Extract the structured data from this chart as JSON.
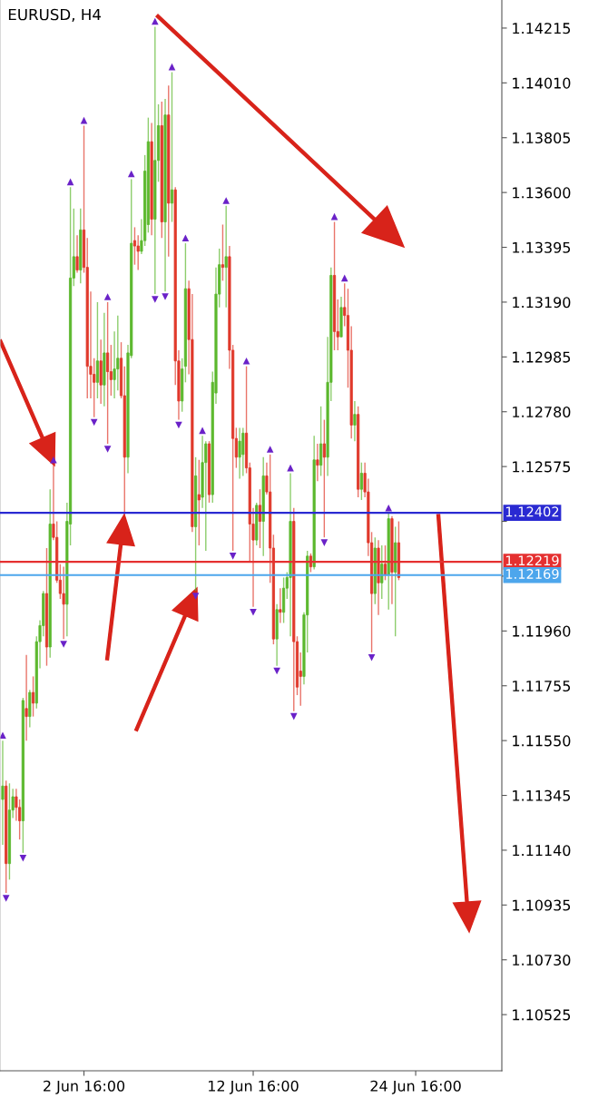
{
  "chart_data": {
    "type": "candlestick",
    "title": "EURUSD, H4",
    "categories": [
      null,
      null,
      null,
      null,
      null,
      null,
      null,
      null,
      null,
      null,
      null,
      null,
      null,
      null,
      null,
      null,
      null,
      null,
      null,
      null,
      null,
      null,
      null,
      null,
      "2 Jun 16:00",
      null,
      null,
      null,
      null,
      null,
      null,
      null,
      null,
      null,
      null,
      null,
      null,
      null,
      null,
      null,
      null,
      null,
      null,
      null,
      null,
      null,
      null,
      null,
      null,
      null,
      null,
      null,
      null,
      null,
      null,
      null,
      null,
      null,
      null,
      null,
      null,
      null,
      null,
      null,
      null,
      null,
      null,
      null,
      null,
      null,
      null,
      null,
      null,
      null,
      "12 Jun 16:00",
      null,
      null,
      null,
      null,
      null,
      null,
      null,
      null,
      null,
      null,
      null,
      null,
      null,
      null,
      null,
      null,
      null,
      null,
      null,
      null,
      null,
      null,
      null,
      null,
      null,
      null,
      null,
      null,
      null,
      null,
      null,
      null,
      null,
      null,
      null,
      null,
      null,
      null,
      null,
      null,
      null,
      null,
      null,
      null,
      null,
      null,
      null,
      "24 Jun 16:00",
      null,
      null,
      null,
      null,
      null,
      null,
      null,
      null,
      null,
      null,
      null,
      null,
      null,
      null,
      null,
      null,
      null,
      null,
      null,
      null,
      null,
      null,
      null,
      null,
      null
    ],
    "colors": [
      "#5cb82e",
      "#e0392b",
      "#5cb82e",
      "#5cb82e",
      "#e0392b",
      "#e0392b",
      "#5cb82e",
      "#e0392b",
      "#5cb82e",
      "#e0392b",
      "#5cb82e",
      "#5cb82e",
      "#5cb82e",
      "#e0392b",
      "#5cb82e",
      "#e0392b",
      "#e0392b",
      "#e0392b",
      "#e0392b",
      "#5cb82e",
      "#5cb82e",
      "#5cb82e",
      "#e0392b",
      "#5cb82e",
      "#e0392b",
      "#e0392b",
      "#e0392b",
      "#e0392b",
      "#5cb82e",
      "#e0392b",
      "#5cb82e",
      "#e0392b",
      "#e0392b",
      "#5cb82e",
      "#5cb82e",
      "#e0392b",
      "#e0392b",
      "#5cb82e",
      "#5cb82e",
      "#e0392b",
      "#e0392b",
      "#5cb82e",
      "#5cb82e",
      "#5cb82e",
      "#e0392b",
      "#5cb82e",
      "#5cb82e",
      "#e0392b",
      "#5cb82e",
      "#e0392b",
      "#5cb82e",
      "#e0392b",
      "#e0392b",
      "#5cb82e",
      "#5cb82e",
      "#e0392b",
      "#e0392b",
      "#5cb82e",
      "#e0392b",
      "#5cb82e",
      "#5cb82e",
      "#e0392b",
      "#5cb82e",
      "#5cb82e",
      "#5cb82e",
      "#e0392b",
      "#5cb82e",
      "#e0392b",
      "#e0392b",
      "#e0392b",
      "#5cb82e",
      "#5cb82e",
      "#e0392b",
      "#e0392b",
      "#e0392b",
      "#5cb82e",
      "#e0392b",
      "#5cb82e",
      "#e0392b",
      "#e0392b",
      "#e0392b",
      "#5cb82e",
      "#e0392b",
      "#5cb82e",
      "#5cb82e",
      "#5cb82e",
      "#e0392b",
      "#e0392b",
      "#e0392b",
      "#5cb82e",
      "#5cb82e",
      "#e0392b",
      "#5cb82e",
      "#e0392b",
      "#5cb82e",
      "#e0392b",
      "#5cb82e",
      "#5cb82e",
      "#e0392b",
      "#e0392b",
      "#5cb82e",
      "#e0392b",
      "#e0392b",
      "#e0392b",
      "#5cb82e",
      "#e0392b",
      "#5cb82e",
      "#e0392b",
      "#e0392b",
      "#e0392b",
      "#5cb82e",
      "#e0392b",
      "#5cb82e",
      "#e0392b",
      "#5cb82e",
      "#e0392b",
      "#5cb82e",
      "#e0392b",
      null,
      null,
      null,
      null,
      null,
      null,
      null,
      null,
      null,
      null,
      null,
      null,
      null,
      null,
      null,
      null,
      null,
      null,
      null,
      null,
      null,
      null,
      null,
      null,
      null,
      null,
      null,
      null,
      null,
      null
    ],
    "ohlc": [
      [
        1.1133,
        1.1155,
        1.1116,
        1.1138
      ],
      [
        1.1138,
        1.114,
        1.1098,
        1.1109
      ],
      [
        1.1109,
        1.1139,
        1.1103,
        1.1129
      ],
      [
        1.1129,
        1.1137,
        1.1126,
        1.1134
      ],
      [
        1.1134,
        1.1137,
        1.1125,
        1.113
      ],
      [
        1.113,
        1.1133,
        1.1118,
        1.1125
      ],
      [
        1.1125,
        1.1171,
        1.1113,
        1.117
      ],
      [
        1.1167,
        1.1187,
        1.1155,
        1.1164
      ],
      [
        1.1164,
        1.1174,
        1.116,
        1.1173
      ],
      [
        1.1173,
        1.1179,
        1.1164,
        1.1169
      ],
      [
        1.1169,
        1.1194,
        1.1167,
        1.1192
      ],
      [
        1.1192,
        1.12,
        1.1182,
        1.1198
      ],
      [
        1.1198,
        1.1211,
        1.1194,
        1.121
      ],
      [
        1.121,
        1.1227,
        1.1183,
        1.119
      ],
      [
        1.119,
        1.1249,
        1.1186,
        1.1236
      ],
      [
        1.1236,
        1.1258,
        1.123,
        1.1231
      ],
      [
        1.1231,
        1.1237,
        1.1214,
        1.1215
      ],
      [
        1.1215,
        1.1221,
        1.1208,
        1.121
      ],
      [
        1.121,
        1.122,
        1.1193,
        1.1206
      ],
      [
        1.1206,
        1.1244,
        1.1194,
        1.1237
      ],
      [
        1.1236,
        1.1362,
        1.1228,
        1.1328
      ],
      [
        1.1328,
        1.1354,
        1.1325,
        1.1336
      ],
      [
        1.1336,
        1.1344,
        1.133,
        1.1331
      ],
      [
        1.1331,
        1.1354,
        1.1326,
        1.1346
      ],
      [
        1.1346,
        1.1385,
        1.133,
        1.1332
      ],
      [
        1.1332,
        1.1343,
        1.1283,
        1.1295
      ],
      [
        1.1295,
        1.1323,
        1.1283,
        1.1292
      ],
      [
        1.1292,
        1.1298,
        1.1276,
        1.1289
      ],
      [
        1.1289,
        1.1319,
        1.1283,
        1.1297
      ],
      [
        1.1297,
        1.1305,
        1.1281,
        1.1288
      ],
      [
        1.1288,
        1.1315,
        1.128,
        1.13
      ],
      [
        1.13,
        1.1319,
        1.1266,
        1.1293
      ],
      [
        1.1293,
        1.1303,
        1.1284,
        1.129
      ],
      [
        1.129,
        1.1308,
        1.1283,
        1.1294
      ],
      [
        1.1294,
        1.1314,
        1.1286,
        1.1298
      ],
      [
        1.1298,
        1.1304,
        1.1283,
        1.1284
      ],
      [
        1.1284,
        1.1295,
        1.1239,
        1.1261
      ],
      [
        1.1261,
        1.1303,
        1.1255,
        1.13
      ],
      [
        1.1299,
        1.1365,
        1.1298,
        1.1341
      ],
      [
        1.1342,
        1.1347,
        1.1333,
        1.134
      ],
      [
        1.134,
        1.1344,
        1.1331,
        1.1338
      ],
      [
        1.1338,
        1.135,
        1.1337,
        1.1342
      ],
      [
        1.1342,
        1.1374,
        1.134,
        1.1368
      ],
      [
        1.1348,
        1.1388,
        1.1345,
        1.1379
      ],
      [
        1.1379,
        1.1386,
        1.1344,
        1.135
      ],
      [
        1.135,
        1.1422,
        1.1322,
        1.1372
      ],
      [
        1.1372,
        1.1393,
        1.1364,
        1.1385
      ],
      [
        1.1385,
        1.1394,
        1.1343,
        1.1349
      ],
      [
        1.1349,
        1.1395,
        1.1323,
        1.1389
      ],
      [
        1.1389,
        1.14,
        1.1336,
        1.1356
      ],
      [
        1.1356,
        1.1405,
        1.1349,
        1.1361
      ],
      [
        1.1361,
        1.1362,
        1.1288,
        1.1297
      ],
      [
        1.1297,
        1.1301,
        1.1275,
        1.1282
      ],
      [
        1.1282,
        1.1298,
        1.1278,
        1.1294
      ],
      [
        1.1295,
        1.1341,
        1.1289,
        1.1324
      ],
      [
        1.1324,
        1.1327,
        1.1292,
        1.1305
      ],
      [
        1.1305,
        1.1322,
        1.1233,
        1.1235
      ],
      [
        1.1235,
        1.1261,
        1.1211,
        1.1254
      ],
      [
        1.1247,
        1.126,
        1.1228,
        1.1245
      ],
      [
        1.1246,
        1.1269,
        1.1242,
        1.1259
      ],
      [
        1.1259,
        1.1267,
        1.1226,
        1.1266
      ],
      [
        1.1266,
        1.1267,
        1.1244,
        1.1247
      ],
      [
        1.1247,
        1.1293,
        1.1244,
        1.1289
      ],
      [
        1.1285,
        1.1332,
        1.1281,
        1.1322
      ],
      [
        1.1322,
        1.1339,
        1.1317,
        1.1333
      ],
      [
        1.1333,
        1.1348,
        1.1327,
        1.1332
      ],
      [
        1.1332,
        1.1355,
        1.1317,
        1.1336
      ],
      [
        1.1336,
        1.134,
        1.1294,
        1.1301
      ],
      [
        1.1301,
        1.1303,
        1.1226,
        1.1268
      ],
      [
        1.1268,
        1.1272,
        1.1257,
        1.1261
      ],
      [
        1.1261,
        1.1272,
        1.1253,
        1.1267
      ],
      [
        1.1262,
        1.1272,
        1.1254,
        1.127
      ],
      [
        1.127,
        1.1295,
        1.1255,
        1.1257
      ],
      [
        1.1257,
        1.1259,
        1.1222,
        1.1236
      ],
      [
        1.1236,
        1.1242,
        1.1205,
        1.123
      ],
      [
        1.123,
        1.1244,
        1.1228,
        1.1243
      ],
      [
        1.1243,
        1.1249,
        1.1227,
        1.1237
      ],
      [
        1.1237,
        1.1261,
        1.1224,
        1.1254
      ],
      [
        1.1254,
        1.1259,
        1.1247,
        1.1248
      ],
      [
        1.1248,
        1.1262,
        1.1214,
        1.1227
      ],
      [
        1.1227,
        1.1232,
        1.1191,
        1.1193
      ],
      [
        1.1193,
        1.1206,
        1.1183,
        1.1204
      ],
      [
        1.1204,
        1.1212,
        1.1199,
        1.1203
      ],
      [
        1.1203,
        1.1216,
        1.1199,
        1.1212
      ],
      [
        1.1212,
        1.1218,
        1.1208,
        1.1216
      ],
      [
        1.1216,
        1.1255,
        1.1194,
        1.1237
      ],
      [
        1.1237,
        1.1242,
        1.1166,
        1.1192
      ],
      [
        1.1192,
        1.1194,
        1.1172,
        1.1175
      ],
      [
        1.1181,
        1.1188,
        1.1168,
        1.1179
      ],
      [
        1.1179,
        1.1203,
        1.1176,
        1.1202
      ],
      [
        1.1202,
        1.1226,
        1.1188,
        1.1224
      ],
      [
        1.1224,
        1.1225,
        1.1218,
        1.122
      ],
      [
        1.122,
        1.1269,
        1.1219,
        1.126
      ],
      [
        1.126,
        1.1266,
        1.1252,
        1.1258
      ],
      [
        1.1258,
        1.128,
        1.1254,
        1.1266
      ],
      [
        1.1266,
        1.1275,
        1.1231,
        1.1261
      ],
      [
        1.1261,
        1.1306,
        1.1254,
        1.1289
      ],
      [
        1.1289,
        1.1332,
        1.1282,
        1.1329
      ],
      [
        1.1329,
        1.1349,
        1.1301,
        1.1308
      ],
      [
        1.1308,
        1.132,
        1.1301,
        1.1306
      ],
      [
        1.1306,
        1.1321,
        1.1306,
        1.1317
      ],
      [
        1.1317,
        1.1326,
        1.131,
        1.1314
      ],
      [
        1.1314,
        1.1324,
        1.1287,
        1.1301
      ],
      [
        1.1301,
        1.131,
        1.1268,
        1.1273
      ],
      [
        1.1273,
        1.1282,
        1.1267,
        1.1277
      ],
      [
        1.1277,
        1.128,
        1.1246,
        1.1249
      ],
      [
        1.1249,
        1.1259,
        1.1245,
        1.1255
      ],
      [
        1.1255,
        1.1259,
        1.1246,
        1.1248
      ],
      [
        1.1248,
        1.1253,
        1.1224,
        1.1229
      ],
      [
        1.1229,
        1.1233,
        1.1188,
        1.121
      ],
      [
        1.121,
        1.1231,
        1.1206,
        1.1227
      ],
      [
        1.1227,
        1.123,
        1.1202,
        1.1214
      ],
      [
        1.1214,
        1.1228,
        1.1208,
        1.1221
      ],
      [
        1.1221,
        1.1228,
        1.1215,
        1.1217
      ],
      [
        1.1217,
        1.124,
        1.1204,
        1.1238
      ],
      [
        1.1238,
        1.1239,
        1.1206,
        1.1218
      ],
      [
        1.1218,
        1.1235,
        1.1194,
        1.1229
      ],
      [
        1.1229,
        1.1237,
        1.1215,
        1.1216
      ],
      null,
      null,
      null,
      null,
      null,
      null,
      null,
      null,
      null,
      null,
      null,
      null,
      null,
      null,
      null,
      null,
      null,
      null,
      null,
      null,
      null,
      null,
      null,
      null,
      null,
      null,
      null,
      null,
      null,
      null
    ],
    "series": [
      {
        "type": "scatter",
        "marker": "triangle",
        "color": "#6a22c8",
        "values": [
          1.1157,
          null,
          null,
          null,
          null,
          null,
          null,
          null,
          null,
          null,
          null,
          null,
          null,
          null,
          null,
          1.126,
          null,
          null,
          null,
          null,
          1.1364,
          null,
          null,
          null,
          1.1387,
          null,
          null,
          null,
          null,
          null,
          null,
          1.1321,
          null,
          null,
          null,
          null,
          null,
          null,
          1.1367,
          null,
          null,
          null,
          null,
          null,
          null,
          1.1424,
          null,
          null,
          null,
          null,
          1.1407,
          null,
          null,
          null,
          1.1343,
          null,
          null,
          null,
          null,
          1.1271,
          null,
          null,
          null,
          null,
          null,
          null,
          1.1357,
          null,
          null,
          null,
          null,
          null,
          1.1297,
          null,
          null,
          null,
          null,
          null,
          null,
          1.1264,
          null,
          null,
          null,
          null,
          null,
          1.1257,
          null,
          null,
          null,
          null,
          null,
          null,
          null,
          null,
          null,
          null,
          null,
          null,
          1.1351,
          null,
          null,
          1.1328,
          null,
          null,
          null,
          null,
          null,
          null,
          null,
          null,
          null,
          null,
          null,
          null,
          1.1242,
          null,
          null,
          null,
          null,
          null,
          null,
          null,
          null,
          null,
          null,
          null,
          null,
          null,
          null,
          null,
          null,
          null,
          null,
          null,
          null,
          null,
          null,
          null,
          null,
          null,
          null,
          null,
          null,
          null,
          null,
          null,
          null,
          null
        ]
      },
      {
        "type": "scatter",
        "marker": "triangle-down",
        "color": "#6a22c8",
        "values": [
          null,
          1.1096,
          null,
          null,
          null,
          null,
          1.1111,
          null,
          null,
          null,
          null,
          null,
          null,
          null,
          null,
          null,
          null,
          null,
          1.1191,
          null,
          null,
          null,
          null,
          null,
          null,
          null,
          null,
          1.1274,
          null,
          null,
          null,
          1.1264,
          null,
          null,
          null,
          null,
          null,
          null,
          null,
          null,
          null,
          null,
          null,
          null,
          null,
          1.132,
          null,
          null,
          1.1321,
          null,
          null,
          null,
          1.1273,
          null,
          null,
          null,
          null,
          1.1209,
          null,
          null,
          null,
          null,
          null,
          null,
          null,
          null,
          null,
          null,
          1.1224,
          null,
          null,
          null,
          null,
          null,
          1.1203,
          null,
          null,
          null,
          null,
          null,
          null,
          1.1181,
          null,
          null,
          null,
          null,
          1.1164,
          null,
          null,
          null,
          null,
          null,
          null,
          null,
          null,
          1.1229,
          null,
          null,
          null,
          null,
          null,
          null,
          null,
          null,
          null,
          null,
          null,
          null,
          null,
          1.1186,
          null,
          null,
          null,
          null,
          null,
          null,
          null,
          null,
          null,
          null,
          null,
          null,
          null,
          null,
          null,
          null,
          null,
          null,
          null,
          null,
          null,
          null,
          null,
          null,
          null,
          null,
          null,
          null,
          null,
          null,
          null,
          null,
          null,
          null,
          null,
          null,
          null,
          null
        ]
      }
    ],
    "ylim": [
      1.10315,
      1.1432
    ],
    "yticks": [
      1.14215,
      {
        "value": 1.1401,
        "label": "1.14010"
      },
      1.13805,
      {
        "value": 1.136,
        "label": "1.13600"
      },
      1.13395,
      {
        "value": 1.1319,
        "label": "1.13190"
      },
      1.12985,
      {
        "value": 1.1278,
        "label": "1.12780"
      },
      1.12575,
      {
        "value": 1.1237,
        "label": null
      },
      {
        "value": 1.12165,
        "label": null
      },
      {
        "value": 1.1196,
        "label": "1.11960"
      },
      1.11755,
      {
        "value": 1.1155,
        "label": "1.11550"
      },
      1.11345,
      {
        "value": 1.1114,
        "label": "1.11140"
      },
      1.10935,
      {
        "value": 1.1073,
        "label": "1.10730"
      },
      1.10525
    ],
    "ref_lines": [
      {
        "axis": "y",
        "value": 1.12402,
        "label": "1.12402",
        "color": "#2a2ad2"
      },
      {
        "axis": "y",
        "value": 1.12219,
        "label": "1.12219",
        "color": "#e53030"
      },
      {
        "axis": "y",
        "value": 1.12169,
        "label": "1.12169",
        "color": "#4da6ec"
      }
    ],
    "grid": false
  }
}
